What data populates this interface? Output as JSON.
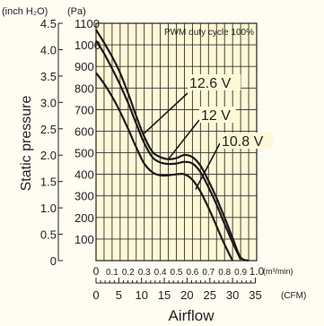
{
  "chart_data": {
    "type": "line",
    "title": "PWM duty cycle 100%",
    "ylabel": "Static pressure",
    "xlabel": "Airflow",
    "units": {
      "y_left_outer": "(inch H₂O)",
      "y_left_inner": "(Pa)",
      "x_top": "(m³/min)",
      "x_bottom": "(CFM)"
    },
    "y_pa": {
      "range": [
        0,
        1100
      ],
      "ticks": [
        100,
        200,
        300,
        400,
        500,
        600,
        700,
        800,
        900,
        1000,
        1100
      ]
    },
    "y_inch": {
      "range": [
        0,
        4.5
      ],
      "ticks": [
        "0",
        "0.5",
        "1.0",
        "1.5",
        "2.0",
        "2.5",
        "3.0",
        "3.5",
        "4.0",
        "4.5"
      ]
    },
    "x_m3min": {
      "range": [
        0,
        1.0
      ],
      "ticks": [
        "0",
        "0.1",
        "0.2",
        "0.3",
        "0.4",
        "0.5",
        "0.6",
        "0.7",
        "0.8",
        "0.9",
        "1.0"
      ]
    },
    "x_cfm": {
      "range": [
        0,
        35.3
      ],
      "ticks": [
        0,
        5,
        10,
        15,
        20,
        25,
        30,
        35
      ]
    },
    "grid": true,
    "series": [
      {
        "name": "12.6 V",
        "x": [
          0.0,
          0.05,
          0.1,
          0.15,
          0.2,
          0.25,
          0.3,
          0.35,
          0.4,
          0.45,
          0.5,
          0.55,
          0.6,
          0.65,
          0.7,
          0.75,
          0.8,
          0.85,
          0.9,
          0.95
        ],
        "y": [
          1070,
          1010,
          945,
          870,
          775,
          670,
          575,
          505,
          480,
          470,
          475,
          490,
          480,
          440,
          370,
          290,
          200,
          105,
          15,
          0
        ]
      },
      {
        "name": "12 V",
        "x": [
          0.0,
          0.05,
          0.1,
          0.15,
          0.2,
          0.25,
          0.3,
          0.35,
          0.4,
          0.45,
          0.5,
          0.55,
          0.6,
          0.65,
          0.7,
          0.75,
          0.8,
          0.85,
          0.9
        ],
        "y": [
          1020,
          960,
          890,
          815,
          730,
          635,
          545,
          480,
          455,
          448,
          450,
          458,
          450,
          410,
          340,
          260,
          170,
          85,
          5
        ]
      },
      {
        "name": "10.8 V",
        "x": [
          0.0,
          0.05,
          0.1,
          0.15,
          0.2,
          0.25,
          0.3,
          0.35,
          0.4,
          0.45,
          0.5,
          0.55,
          0.6,
          0.65,
          0.7,
          0.75,
          0.8,
          0.85
        ],
        "y": [
          870,
          820,
          760,
          690,
          610,
          525,
          450,
          410,
          395,
          395,
          400,
          400,
          375,
          320,
          245,
          160,
          75,
          0
        ]
      }
    ],
    "annotations": [
      {
        "text": "12.6 V",
        "target": "12.6 V",
        "at_x": 0.3,
        "at_y": 590
      },
      {
        "text": "12 V",
        "target": "12 V",
        "at_x": 0.45,
        "at_y": 470
      },
      {
        "text": "10.8 V",
        "target": "10.8 V",
        "at_x": 0.62,
        "at_y": 330
      }
    ]
  }
}
